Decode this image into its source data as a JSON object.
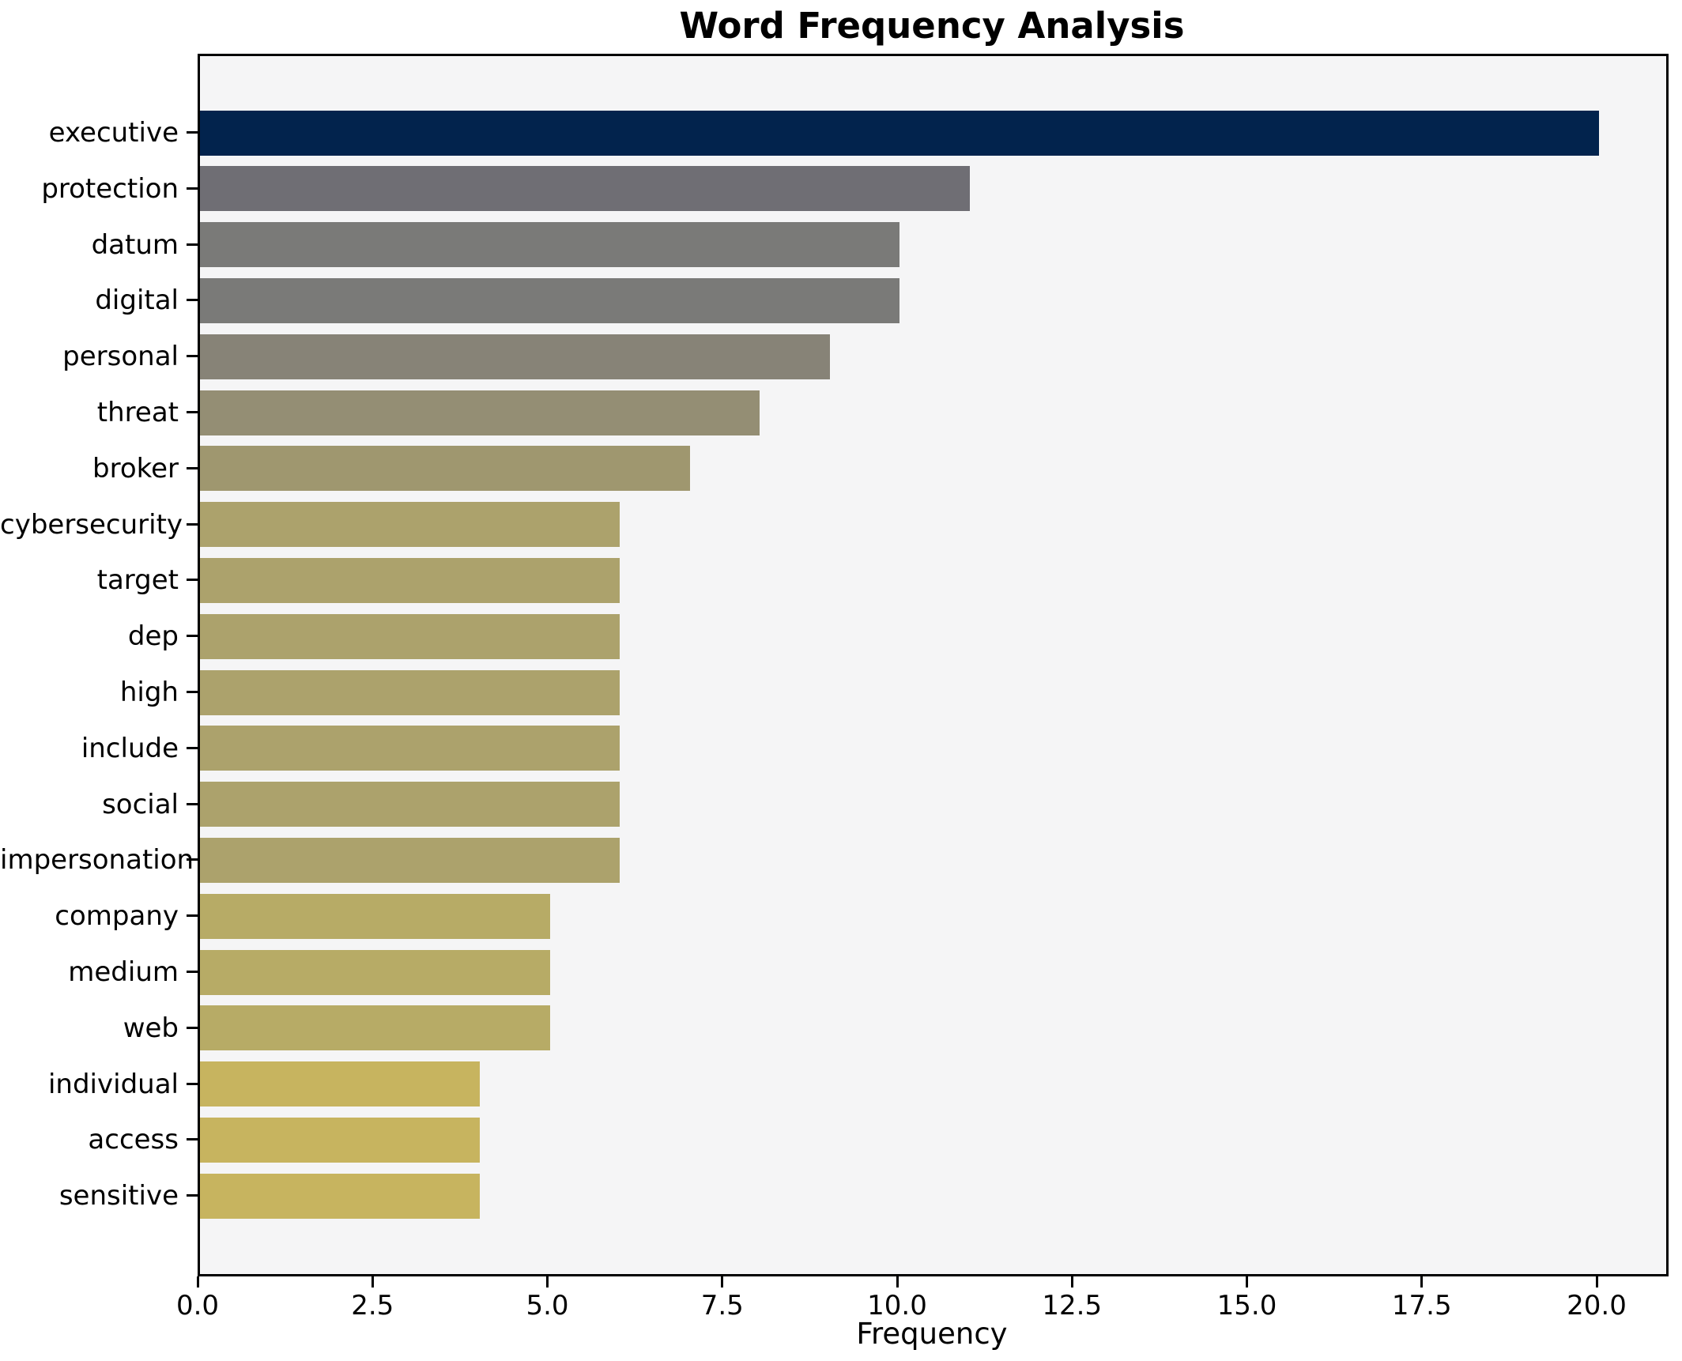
{
  "figure": {
    "background": "#ffffff",
    "plot_background": "#f5f5f6",
    "spine_color": "#000000",
    "text_color": "#000000"
  },
  "chart_data": {
    "type": "bar",
    "orientation": "horizontal",
    "title": "Word Frequency Analysis",
    "xlabel": "Frequency",
    "ylabel": "",
    "xlim": [
      0,
      21
    ],
    "grid": false,
    "legend": "none",
    "x_ticks": [
      {
        "label": "0.0",
        "value": 0
      },
      {
        "label": "2.5",
        "value": 2.5
      },
      {
        "label": "5.0",
        "value": 5
      },
      {
        "label": "7.5",
        "value": 7.5
      },
      {
        "label": "10.0",
        "value": 10
      },
      {
        "label": "12.5",
        "value": 12.5
      },
      {
        "label": "15.0",
        "value": 15
      },
      {
        "label": "17.5",
        "value": 17.5
      },
      {
        "label": "20.0",
        "value": 20
      }
    ],
    "categories": [
      "executive",
      "protection",
      "datum",
      "digital",
      "personal",
      "threat",
      "broker",
      "cybersecurity",
      "target",
      "dep",
      "high",
      "include",
      "social",
      "impersonation",
      "company",
      "medium",
      "web",
      "individual",
      "access",
      "sensitive"
    ],
    "values": [
      20,
      11,
      10,
      10,
      9,
      8,
      7,
      6,
      6,
      6,
      6,
      6,
      6,
      6,
      5,
      5,
      5,
      4,
      4,
      4
    ],
    "bar_colors": [
      "#02234d",
      "#6f6e74",
      "#7a7a78",
      "#7a7a78",
      "#878377",
      "#948e74",
      "#9f976f",
      "#aca26c",
      "#aca26c",
      "#aca26c",
      "#aca26c",
      "#aca26c",
      "#aca26c",
      "#aca26c",
      "#b7ab66",
      "#b7ab66",
      "#b7ab66",
      "#c7b45f",
      "#c7b45f",
      "#c7b45f"
    ]
  }
}
